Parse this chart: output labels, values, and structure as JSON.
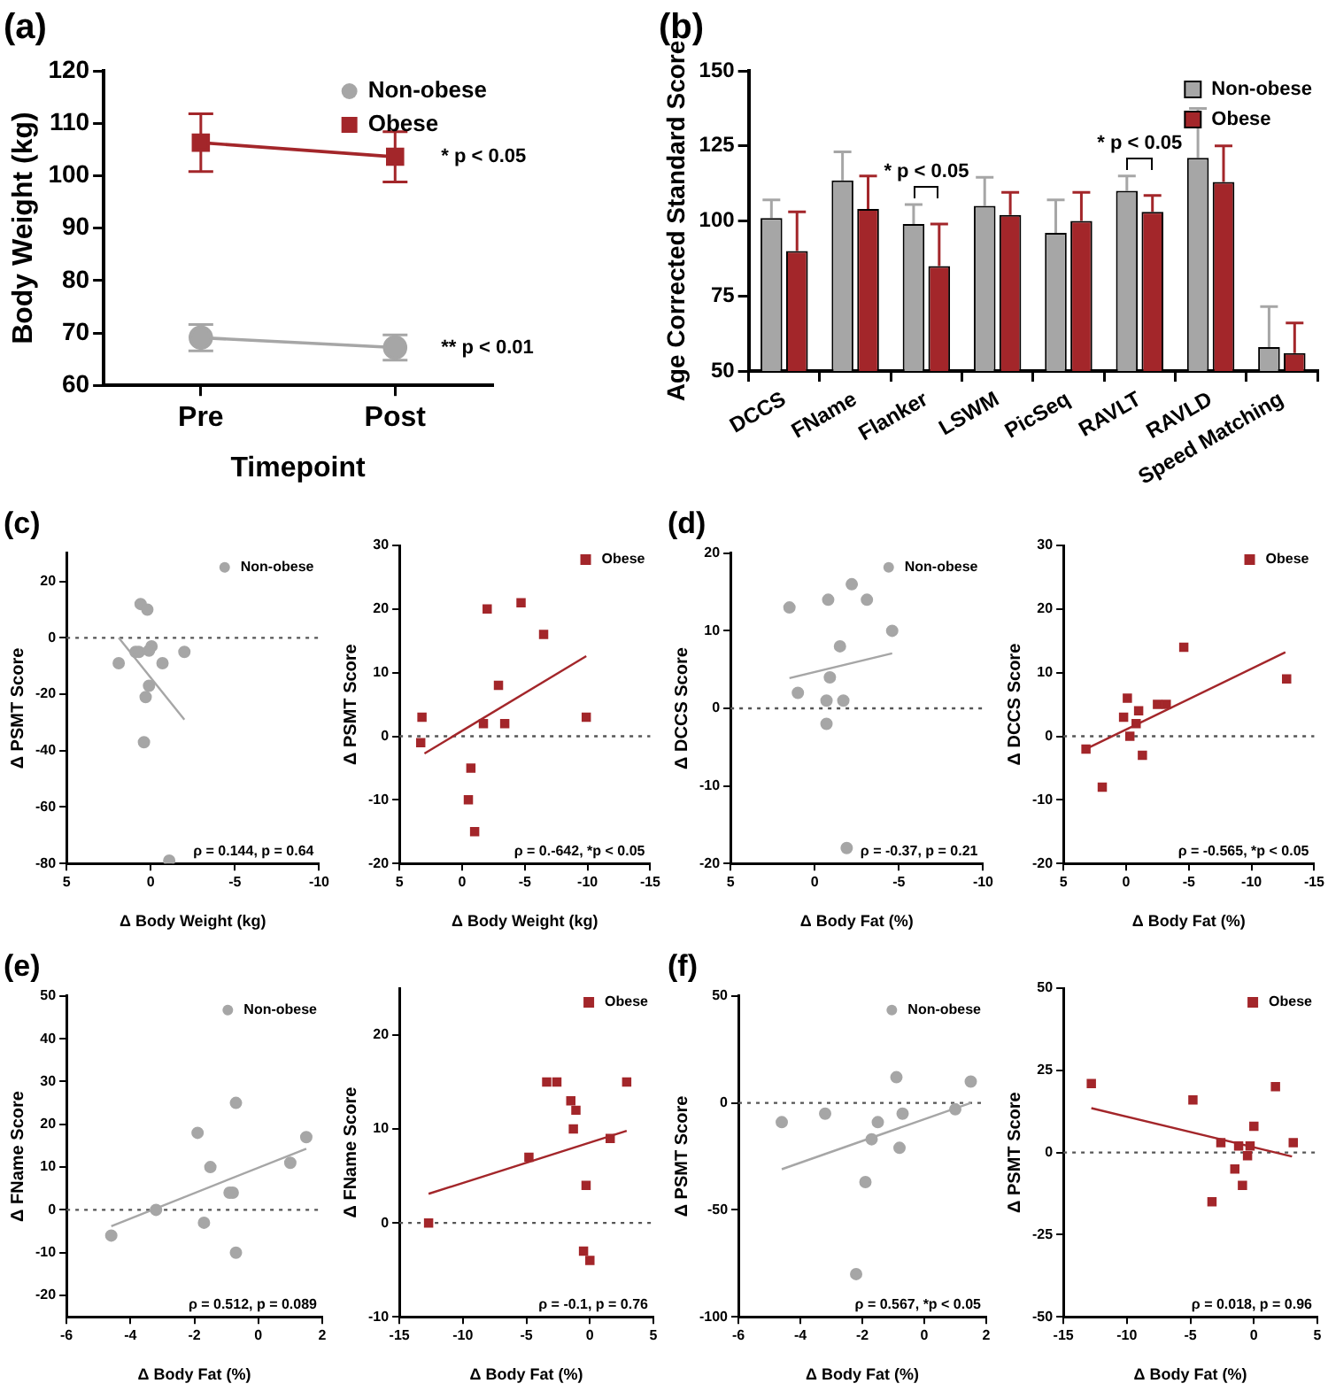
{
  "chart_data": [
    {
      "type": "line",
      "title": "(a)",
      "xlabel": "Timepoint",
      "ylabel": "Body Weight (kg)",
      "categories": [
        "Pre",
        "Post"
      ],
      "ylim": [
        60,
        120
      ],
      "yticks": [
        60,
        70,
        80,
        90,
        100,
        110,
        120
      ],
      "legend": "top right",
      "series": [
        {
          "name": "Non-obese",
          "color": "#a6a6a6",
          "marker": "circle",
          "values": [
            69.1,
            67.2
          ],
          "errors": [
            2.5,
            2.4
          ]
        },
        {
          "name": "Obese",
          "color": "#a3262a",
          "marker": "square",
          "values": [
            106.3,
            103.6
          ],
          "errors": [
            5.5,
            4.8
          ]
        }
      ],
      "annotations": [
        {
          "text": "* p < 0.05",
          "x": "Post",
          "y": 103.6
        },
        {
          "text": "** p < 0.01",
          "x": "Post",
          "y": 67.2
        }
      ]
    },
    {
      "type": "bar",
      "title": "(b)",
      "ylabel": "Age Corrected Standard Score",
      "categories": [
        "DCCS",
        "FName",
        "Flanker",
        "LSWM",
        "PicSeq",
        "RAVLT",
        "RAVLD",
        "Speed Matching"
      ],
      "ylim": [
        50,
        150
      ],
      "yticks": [
        50,
        75,
        100,
        125,
        150
      ],
      "legend": "top right",
      "series": [
        {
          "name": "Non-obese",
          "color": "#a6a6a6",
          "values": [
            101,
            113.5,
            99,
            105,
            96,
            110,
            121,
            58
          ],
          "errors": [
            [
              101,
              107
            ],
            [
              113.5,
              123
            ],
            [
              99,
              105.5
            ],
            [
              105,
              114.5
            ],
            [
              96,
              107
            ],
            [
              110,
              115
            ],
            [
              121,
              137.5
            ],
            [
              58,
              71.5
            ]
          ]
        },
        {
          "name": "Obese",
          "color": "#a3262a",
          "values": [
            90,
            104,
            85,
            102,
            100,
            103,
            113,
            56
          ],
          "errors": [
            [
              90,
              103
            ],
            [
              104,
              115
            ],
            [
              85,
              99
            ],
            [
              102,
              109.5
            ],
            [
              100,
              109.5
            ],
            [
              103,
              108.5
            ],
            [
              113,
              125
            ],
            [
              56,
              66
            ]
          ]
        }
      ],
      "annotations": [
        "* p < 0.05",
        "* p < 0.05"
      ]
    },
    {
      "type": "scatter",
      "title": "(c)",
      "xlabel": "Δ Body Weight (kg)",
      "ylabel": "Δ PSMT Score",
      "xlim": [
        5,
        -10
      ],
      "xticks": [
        5,
        0,
        -5,
        -10
      ],
      "ylim": [
        -80,
        30
      ],
      "yticks": [
        -80,
        -60,
        -40,
        -20,
        0,
        20
      ],
      "legend": "top right",
      "ref_lines": [
        {
          "axis": "y",
          "value": 0,
          "line_style": "dotted"
        }
      ],
      "series": [
        {
          "name": "Non-obese",
          "color": "#a6a6a6",
          "marker": "circle",
          "x": [
            1.9,
            0.6,
            0.2,
            0.9,
            0.7,
            -0.05,
            0.1,
            -0.7,
            -2,
            0.1,
            0.3,
            0.4,
            -1.1
          ],
          "values": [
            -9,
            12,
            10,
            -5,
            -5,
            -3,
            -4.5,
            -9,
            -5,
            -17,
            -21,
            -37,
            -79
          ]
        },
        {
          "type": "line",
          "color": "#a6a6a6",
          "marker": "none",
          "x": [
            1.9,
            -2
          ],
          "values": [
            0,
            -29
          ]
        }
      ],
      "annotations": [
        "ρ = 0.144, p = 0.64"
      ]
    },
    {
      "type": "scatter",
      "xlabel": "Δ Body Weight (kg)",
      "ylabel": "Δ PSMT Score",
      "xlim": [
        5,
        -15
      ],
      "xticks": [
        5,
        0,
        -5,
        -10,
        -15
      ],
      "ylim": [
        -20,
        30
      ],
      "yticks": [
        -20,
        -10,
        0,
        10,
        20,
        30
      ],
      "legend": "top right",
      "ref_lines": [
        {
          "axis": "y",
          "value": 0,
          "line_style": "dotted"
        }
      ],
      "series": [
        {
          "name": "Obese",
          "color": "#a3262a",
          "marker": "square",
          "x": [
            3.2,
            3.3,
            -0.7,
            -0.5,
            -1.0,
            -1.7,
            -2.0,
            -2.9,
            -3.4,
            -4.7,
            -6.5,
            -9.9
          ],
          "values": [
            3,
            -1,
            -5,
            -10,
            -15,
            2,
            20,
            8,
            2,
            21,
            16,
            3
          ]
        },
        {
          "type": "line",
          "color": "#a3262a",
          "marker": "none",
          "x": [
            3.0,
            -9.9
          ],
          "values": [
            -2.7,
            12.6
          ]
        }
      ],
      "annotations": [
        "ρ = 0.-642, *p < 0.05"
      ]
    },
    {
      "type": "scatter",
      "title": "(d)",
      "xlabel": "Δ Body Fat (%)",
      "ylabel": "Δ DCCS Score",
      "xlim": [
        5,
        -10
      ],
      "xticks": [
        5,
        0,
        -5,
        -10
      ],
      "ylim": [
        -20,
        20
      ],
      "yticks": [
        -20,
        -10,
        0,
        10,
        20
      ],
      "legend": "top right",
      "ref_lines": [
        {
          "axis": "y",
          "value": 0,
          "line_style": "dotted"
        }
      ],
      "series": [
        {
          "name": "Non-obese",
          "color": "#a6a6a6",
          "marker": "circle",
          "x": [
            1.5,
            1.0,
            -0.8,
            -0.9,
            -0.7,
            -0.7,
            -1.5,
            -1.7,
            -2.2,
            -3.1,
            -4.6,
            -1.9
          ],
          "values": [
            13,
            2,
            14,
            4,
            1,
            -2,
            8,
            1,
            16,
            14,
            10,
            -18
          ]
        },
        {
          "type": "line",
          "color": "#a6a6a6",
          "marker": "none",
          "x": [
            1.5,
            -4.6
          ],
          "values": [
            3.9,
            7.1
          ]
        }
      ],
      "annotations": [
        "ρ = -0.37, p = 0.21"
      ]
    },
    {
      "type": "scatter",
      "xlabel": "Δ Body Fat (%)",
      "ylabel": "Δ DCCS Score",
      "xlim": [
        5,
        -15
      ],
      "xticks": [
        5,
        0,
        -5,
        -10,
        -15
      ],
      "ylim": [
        -20,
        30
      ],
      "yticks": [
        -20,
        -10,
        0,
        10,
        20,
        30
      ],
      "legend": "top right",
      "ref_lines": [
        {
          "axis": "y",
          "value": 0,
          "line_style": "dotted"
        }
      ],
      "series": [
        {
          "name": "Obese",
          "color": "#a3262a",
          "marker": "square",
          "x": [
            3.2,
            1.9,
            0.2,
            -0.1,
            -0.3,
            -0.8,
            -1.0,
            -1.3,
            -2.5,
            -3.2,
            -4.6,
            -12.8
          ],
          "values": [
            -2,
            -8,
            3,
            6,
            0,
            2,
            4,
            -3,
            5,
            5,
            14,
            9
          ]
        },
        {
          "type": "line",
          "color": "#a3262a",
          "marker": "none",
          "x": [
            3.2,
            -12.7
          ],
          "values": [
            -2,
            13.2
          ]
        }
      ],
      "annotations": [
        "ρ = -0.565, *p < 0.05"
      ]
    },
    {
      "type": "scatter",
      "title": "(e)",
      "xlabel": "Δ Body Fat (%)",
      "ylabel": "Δ FName Score",
      "xlim": [
        -6,
        2
      ],
      "xticks": [
        -6,
        -4,
        -2,
        0,
        2
      ],
      "ylim": [
        -25,
        50
      ],
      "yticks": [
        -20,
        -10,
        0,
        10,
        20,
        30,
        40,
        50
      ],
      "legend": "top right",
      "ref_lines": [
        {
          "axis": "y",
          "value": 0,
          "line_style": "dotted"
        }
      ],
      "series": [
        {
          "name": "Non-obese",
          "color": "#a6a6a6",
          "marker": "circle",
          "x": [
            -4.6,
            -3.2,
            -1.9,
            -1.7,
            -1.5,
            -0.9,
            -0.8,
            -0.7,
            -0.7,
            1.0,
            1.5
          ],
          "values": [
            -6,
            0,
            18,
            -3,
            10,
            4,
            4,
            25,
            -10,
            11,
            17
          ]
        },
        {
          "type": "line",
          "color": "#a6a6a6",
          "marker": "none",
          "x": [
            -4.6,
            1.5
          ],
          "values": [
            -3.8,
            14.3
          ]
        }
      ],
      "annotations": [
        "ρ = 0.512, p = 0.089"
      ]
    },
    {
      "type": "scatter",
      "xlabel": "Δ Body Fat (%)",
      "ylabel": "Δ FName Score",
      "xlim": [
        -15,
        5
      ],
      "xticks": [
        -15,
        -10,
        -5,
        0,
        5
      ],
      "ylim": [
        -10,
        25
      ],
      "yticks": [
        -10,
        0,
        10,
        20
      ],
      "legend": "top right",
      "ref_lines": [
        {
          "axis": "y",
          "value": 0,
          "line_style": "dotted"
        }
      ],
      "series": [
        {
          "name": "Obese",
          "color": "#a3262a",
          "marker": "square",
          "x": [
            -12.7,
            -4.8,
            -3.4,
            -2.6,
            -1.5,
            -1.1,
            -1.3,
            1.6,
            -0.3,
            -0.5,
            0.0,
            2.9
          ],
          "values": [
            0,
            7,
            15,
            15,
            13,
            12,
            10,
            9,
            4,
            -3,
            -4,
            15
          ]
        },
        {
          "type": "line",
          "color": "#a3262a",
          "marker": "none",
          "x": [
            -12.7,
            2.9
          ],
          "values": [
            3.1,
            9.8
          ]
        }
      ],
      "annotations": [
        "ρ = -0.1, p = 0.76"
      ]
    },
    {
      "type": "scatter",
      "title": "(f)",
      "xlabel": "Δ Body Fat (%)",
      "ylabel": "Δ PSMT Score",
      "xlim": [
        -6,
        2
      ],
      "xticks": [
        -6,
        -4,
        -2,
        0,
        2
      ],
      "ylim": [
        -100,
        50
      ],
      "yticks": [
        -100,
        -50,
        0,
        50
      ],
      "legend": "top right",
      "ref_lines": [
        {
          "axis": "y",
          "value": 0,
          "line_style": "dotted"
        }
      ],
      "series": [
        {
          "name": "Non-obese",
          "color": "#a6a6a6",
          "marker": "circle",
          "x": [
            -4.6,
            -3.2,
            -1.9,
            -2.2,
            -1.7,
            -1.5,
            -0.9,
            -0.8,
            -0.7,
            1.0,
            1.5
          ],
          "values": [
            -9,
            -5,
            -37,
            -80,
            -17,
            -9,
            12,
            -21,
            -5,
            -3,
            10
          ]
        },
        {
          "type": "line",
          "color": "#a6a6a6",
          "marker": "none",
          "x": [
            -4.6,
            1.5
          ],
          "values": [
            -31,
            0
          ]
        }
      ],
      "annotations": [
        "ρ = 0.567, *p < 0.05"
      ]
    },
    {
      "type": "scatter",
      "xlabel": "Δ Body Fat (%)",
      "ylabel": "Δ PSMT Score",
      "xlim": [
        -15,
        5
      ],
      "xticks": [
        -15,
        -10,
        -5,
        0,
        5
      ],
      "ylim": [
        -50,
        50
      ],
      "yticks": [
        -50,
        -25,
        0,
        25,
        50
      ],
      "legend": "top right",
      "ref_lines": [
        {
          "axis": "y",
          "value": 0,
          "line_style": "dotted"
        }
      ],
      "series": [
        {
          "name": "Obese",
          "color": "#a3262a",
          "marker": "square",
          "x": [
            -12.8,
            -4.8,
            -2.6,
            -3.3,
            -1.5,
            -1.2,
            -0.9,
            -0.5,
            -0.3,
            0.0,
            1.7,
            3.1
          ],
          "values": [
            21,
            16,
            3,
            -15,
            -5,
            2,
            -10,
            -1,
            2,
            8,
            20,
            3
          ]
        },
        {
          "type": "line",
          "color": "#a3262a",
          "marker": "none",
          "x": [
            -12.8,
            3.0
          ],
          "values": [
            13.5,
            -1.2
          ]
        }
      ],
      "annotations": [
        "ρ = 0.018, p = 0.96"
      ]
    }
  ]
}
